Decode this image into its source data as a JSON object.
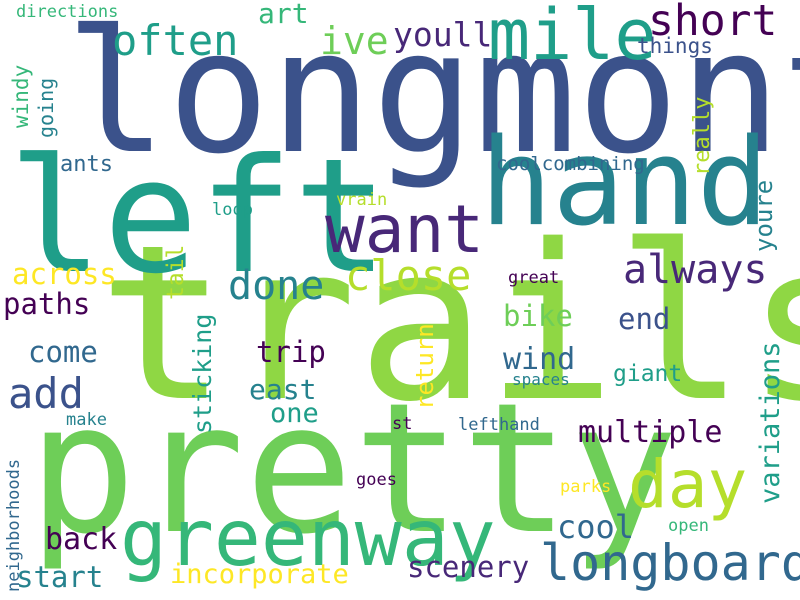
{
  "words": {
    "longmont": "longmont",
    "trails": "trails",
    "pretty": "pretty",
    "left": "left",
    "hand": "hand",
    "greenway": "greenway",
    "mile": "mile",
    "want": "want",
    "day": "day",
    "longboard": "longboard",
    "short": "short",
    "often": "often",
    "close": "close",
    "always": "always",
    "done": "done",
    "add": "add",
    "multiple": "multiple",
    "ive": "ive",
    "youll": "youll",
    "wind": "wind",
    "art": "art",
    "scenery": "scenery",
    "start": "start",
    "incorporate": "incorporate",
    "cool": "cool",
    "back": "back",
    "across": "across",
    "paths": "paths",
    "come": "come",
    "bike": "bike",
    "end": "end",
    "trip": "trip",
    "east": "east",
    "one": "one",
    "giant": "giant",
    "things": "things",
    "directions": "directions",
    "ants": "ants",
    "coolcombining": "coolcombining",
    "vrain": "vrain",
    "loop": "loop",
    "great": "great",
    "spaces": "spaces",
    "make": "make",
    "st": "st",
    "lefthand": "lefthand",
    "goes": "goes",
    "parks": "parks",
    "open": "open",
    "neighborhoods": "neighborhoods",
    "windy": "windy",
    "going": "going",
    "really": "really",
    "youre": "youre",
    "tail": "tail",
    "sticking": "sticking",
    "return": "return",
    "variations": "variations"
  },
  "colors": {
    "background": "#ffffff",
    "dark_purple": "#440154",
    "indigo": "#482878",
    "slate_blue": "#3b528b",
    "steel_blue": "#31688e",
    "teal_blue": "#26828e",
    "teal": "#1f9e89",
    "sea_green": "#35b779",
    "green": "#6ece58",
    "lime": "#8fd744",
    "yellow_green": "#b5de2b",
    "yellow": "#fde725"
  }
}
